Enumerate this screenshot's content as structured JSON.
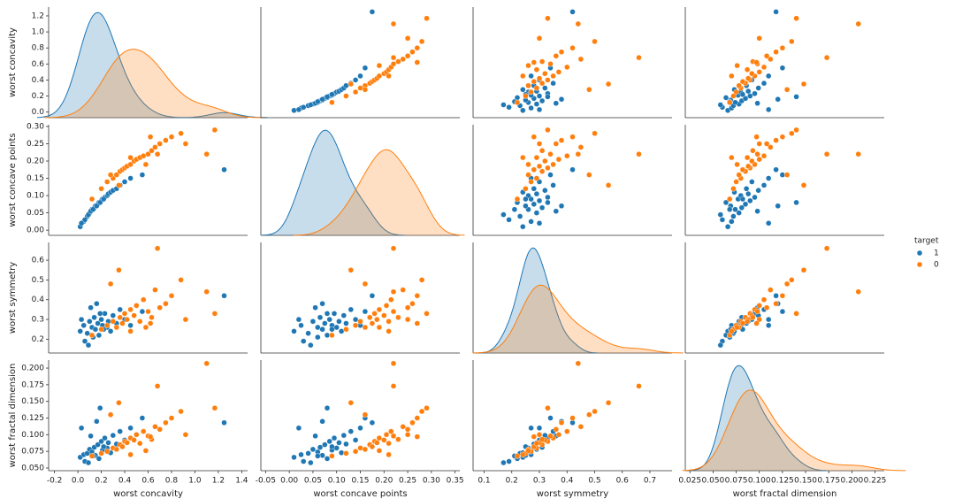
{
  "chart_data": {
    "type": "pairplot",
    "hue": "target",
    "legend": "right",
    "variables": [
      {
        "label": "worst concavity",
        "xlim": [
          -0.25,
          1.45
        ],
        "xticks": [
          -0.2,
          {
            "value": 0,
            "label": "0.0"
          },
          0.2,
          0.4,
          0.6,
          0.8,
          {
            "value": 1,
            "label": "1.0"
          },
          1.2,
          1.4
        ],
        "ylim": [
          -0.07,
          1.31
        ],
        "yticks": [
          {
            "value": 0,
            "label": "0.0"
          },
          0.2,
          0.4,
          0.6,
          0.8,
          {
            "value": 1,
            "label": "1.0"
          },
          1.2
        ]
      },
      {
        "label": "worst concave points",
        "xlim": [
          -0.06,
          0.36
        ],
        "xticks": [
          -0.05,
          {
            "value": 0,
            "label": "0.00"
          },
          0.05,
          {
            "value": 0.1,
            "label": "0.10"
          },
          0.15,
          {
            "value": 0.2,
            "label": "0.20"
          },
          0.25,
          {
            "value": 0.3,
            "label": "0.30"
          },
          0.35
        ],
        "ylim": [
          -0.015,
          0.305
        ],
        "yticks": [
          {
            "value": 0,
            "label": "0.00"
          },
          0.05,
          {
            "value": 0.1,
            "label": "0.10"
          },
          0.15,
          {
            "value": 0.2,
            "label": "0.20"
          },
          0.25,
          {
            "value": 0.3,
            "label": "0.30"
          }
        ]
      },
      {
        "label": "worst symmetry",
        "xlim": [
          0.06,
          0.78
        ],
        "xticks": [
          0.1,
          0.2,
          0.3,
          0.4,
          0.5,
          0.6,
          0.7
        ],
        "ylim": [
          0.13,
          0.69
        ],
        "yticks": [
          0.2,
          0.3,
          0.4,
          0.5,
          0.6
        ]
      },
      {
        "label": "worst fractal dimension",
        "xlim": [
          0.02,
          0.235
        ],
        "xticks": [
          0.025,
          {
            "value": 0.05,
            "label": "0.050"
          },
          0.075,
          {
            "value": 0.1,
            "label": "0.100"
          },
          0.125,
          {
            "value": 0.15,
            "label": "0.150"
          },
          0.175,
          {
            "value": 0.2,
            "label": "0.200"
          },
          0.225
        ],
        "ylim": [
          0.046,
          0.212
        ],
        "yticks": [
          {
            "value": 0.05,
            "label": "0.050"
          },
          0.075,
          {
            "value": 0.1,
            "label": "0.100"
          },
          0.125,
          {
            "value": 0.15,
            "label": "0.150"
          },
          0.175,
          {
            "value": 0.2,
            "label": "0.200"
          }
        ]
      }
    ],
    "series": [
      {
        "name": "1",
        "color": "#1f77b4",
        "points": [
          [
            0.02,
            0.01,
            0.24,
            0.066
          ],
          [
            0.05,
            0.025,
            0.27,
            0.07
          ],
          [
            0.08,
            0.04,
            0.23,
            0.072
          ],
          [
            0.1,
            0.05,
            0.29,
            0.078
          ],
          [
            0.12,
            0.06,
            0.26,
            0.074
          ],
          [
            0.14,
            0.065,
            0.31,
            0.081
          ],
          [
            0.15,
            0.07,
            0.25,
            0.069
          ],
          [
            0.17,
            0.075,
            0.28,
            0.085
          ],
          [
            0.18,
            0.08,
            0.22,
            0.064
          ],
          [
            0.2,
            0.085,
            0.3,
            0.09
          ],
          [
            0.21,
            0.09,
            0.27,
            0.077
          ],
          [
            0.23,
            0.095,
            0.33,
            0.095
          ],
          [
            0.25,
            0.1,
            0.26,
            0.08
          ],
          [
            0.26,
            0.105,
            0.29,
            0.088
          ],
          [
            0.28,
            0.11,
            0.24,
            0.073
          ],
          [
            0.3,
            0.115,
            0.32,
            0.099
          ],
          [
            0.33,
            0.12,
            0.28,
            0.086
          ],
          [
            0.36,
            0.13,
            0.35,
            0.105
          ],
          [
            0.4,
            0.14,
            0.3,
            0.092
          ],
          [
            0.45,
            0.15,
            0.27,
            0.11
          ],
          [
            0.06,
            0.03,
            0.19,
            0.06
          ],
          [
            0.09,
            0.045,
            0.17,
            0.058
          ],
          [
            0.11,
            0.055,
            0.36,
            0.098
          ],
          [
            0.13,
            0.06,
            0.21,
            0.068
          ],
          [
            0.16,
            0.07,
            0.38,
            0.12
          ],
          [
            0.19,
            0.08,
            0.33,
            0.14
          ],
          [
            0.03,
            0.02,
            0.3,
            0.11
          ],
          [
            0.22,
            0.09,
            0.25,
            0.082
          ],
          [
            0.55,
            0.16,
            0.34,
            0.125
          ],
          [
            1.25,
            0.175,
            0.42,
            0.118
          ]
        ]
      },
      {
        "name": "0",
        "color": "#ff7f0e",
        "points": [
          [
            0.12,
            0.09,
            0.22,
            0.068
          ],
          [
            0.2,
            0.12,
            0.25,
            0.072
          ],
          [
            0.25,
            0.14,
            0.27,
            0.075
          ],
          [
            0.3,
            0.15,
            0.29,
            0.08
          ],
          [
            0.33,
            0.16,
            0.26,
            0.078
          ],
          [
            0.36,
            0.17,
            0.31,
            0.085
          ],
          [
            0.38,
            0.175,
            0.28,
            0.082
          ],
          [
            0.4,
            0.18,
            0.33,
            0.09
          ],
          [
            0.42,
            0.185,
            0.3,
            0.088
          ],
          [
            0.45,
            0.19,
            0.35,
            0.095
          ],
          [
            0.48,
            0.2,
            0.32,
            0.092
          ],
          [
            0.5,
            0.205,
            0.37,
            0.1
          ],
          [
            0.53,
            0.21,
            0.29,
            0.087
          ],
          [
            0.56,
            0.215,
            0.4,
            0.105
          ],
          [
            0.6,
            0.22,
            0.34,
            0.098
          ],
          [
            0.63,
            0.23,
            0.31,
            0.093
          ],
          [
            0.66,
            0.24,
            0.45,
            0.112
          ],
          [
            0.7,
            0.25,
            0.36,
            0.108
          ],
          [
            0.75,
            0.26,
            0.38,
            0.118
          ],
          [
            0.8,
            0.27,
            0.42,
            0.125
          ],
          [
            0.88,
            0.28,
            0.5,
            0.135
          ],
          [
            0.35,
            0.13,
            0.55,
            0.148
          ],
          [
            0.28,
            0.16,
            0.48,
            0.13
          ],
          [
            0.45,
            0.21,
            0.24,
            0.07
          ],
          [
            0.58,
            0.19,
            0.26,
            0.076
          ],
          [
            0.68,
            0.22,
            0.66,
            0.173
          ],
          [
            0.92,
            0.25,
            0.3,
            0.1
          ],
          [
            1.1,
            0.22,
            0.44,
            0.207
          ],
          [
            1.17,
            0.29,
            0.33,
            0.14
          ],
          [
            0.62,
            0.27,
            0.28,
            0.097
          ]
        ]
      }
    ]
  }
}
